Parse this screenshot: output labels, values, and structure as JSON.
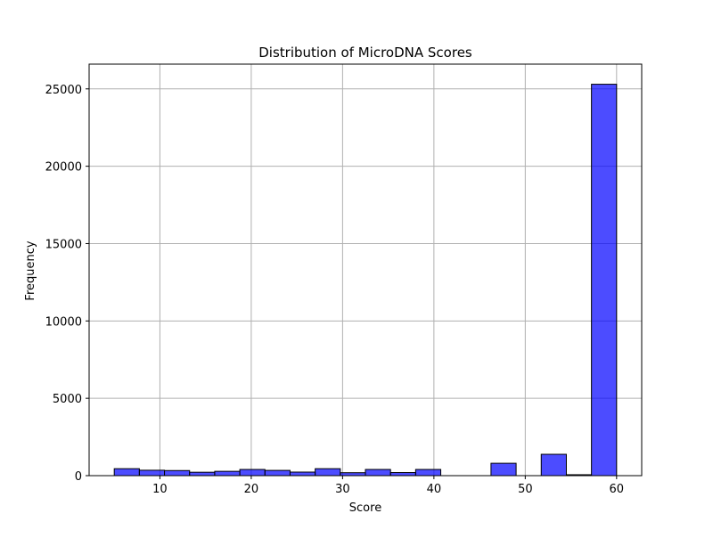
{
  "chart_data": {
    "type": "bar",
    "title": "Distribution of MicroDNA Scores",
    "xlabel": "Score",
    "ylabel": "Frequency",
    "xlim": [
      2.25,
      62.75
    ],
    "ylim": [
      0,
      26600
    ],
    "xticks": [
      10,
      20,
      30,
      40,
      50,
      60
    ],
    "yticks": [
      0,
      5000,
      10000,
      15000,
      20000,
      25000
    ],
    "grid": true,
    "bar_color": "#0000ff",
    "bar_alpha": 0.7,
    "edge_color": "#000000",
    "bins": [
      {
        "x0": 5.0,
        "x1": 7.75,
        "value": 450
      },
      {
        "x0": 7.75,
        "x1": 10.5,
        "value": 350
      },
      {
        "x0": 10.5,
        "x1": 13.25,
        "value": 330
      },
      {
        "x0": 13.25,
        "x1": 16.0,
        "value": 220
      },
      {
        "x0": 16.0,
        "x1": 18.75,
        "value": 280
      },
      {
        "x0": 18.75,
        "x1": 21.5,
        "value": 400
      },
      {
        "x0": 21.5,
        "x1": 24.25,
        "value": 340
      },
      {
        "x0": 24.25,
        "x1": 27.0,
        "value": 230
      },
      {
        "x0": 27.0,
        "x1": 29.75,
        "value": 450
      },
      {
        "x0": 29.75,
        "x1": 32.5,
        "value": 190
      },
      {
        "x0": 32.5,
        "x1": 35.25,
        "value": 400
      },
      {
        "x0": 35.25,
        "x1": 38.0,
        "value": 200
      },
      {
        "x0": 38.0,
        "x1": 40.75,
        "value": 400
      },
      {
        "x0": 40.75,
        "x1": 43.5,
        "value": 0
      },
      {
        "x0": 43.5,
        "x1": 46.25,
        "value": 0
      },
      {
        "x0": 46.25,
        "x1": 49.0,
        "value": 800
      },
      {
        "x0": 49.0,
        "x1": 51.75,
        "value": 0
      },
      {
        "x0": 51.75,
        "x1": 54.5,
        "value": 1380
      },
      {
        "x0": 54.5,
        "x1": 57.25,
        "value": 60
      },
      {
        "x0": 57.25,
        "x1": 60.0,
        "value": 25300
      }
    ]
  }
}
